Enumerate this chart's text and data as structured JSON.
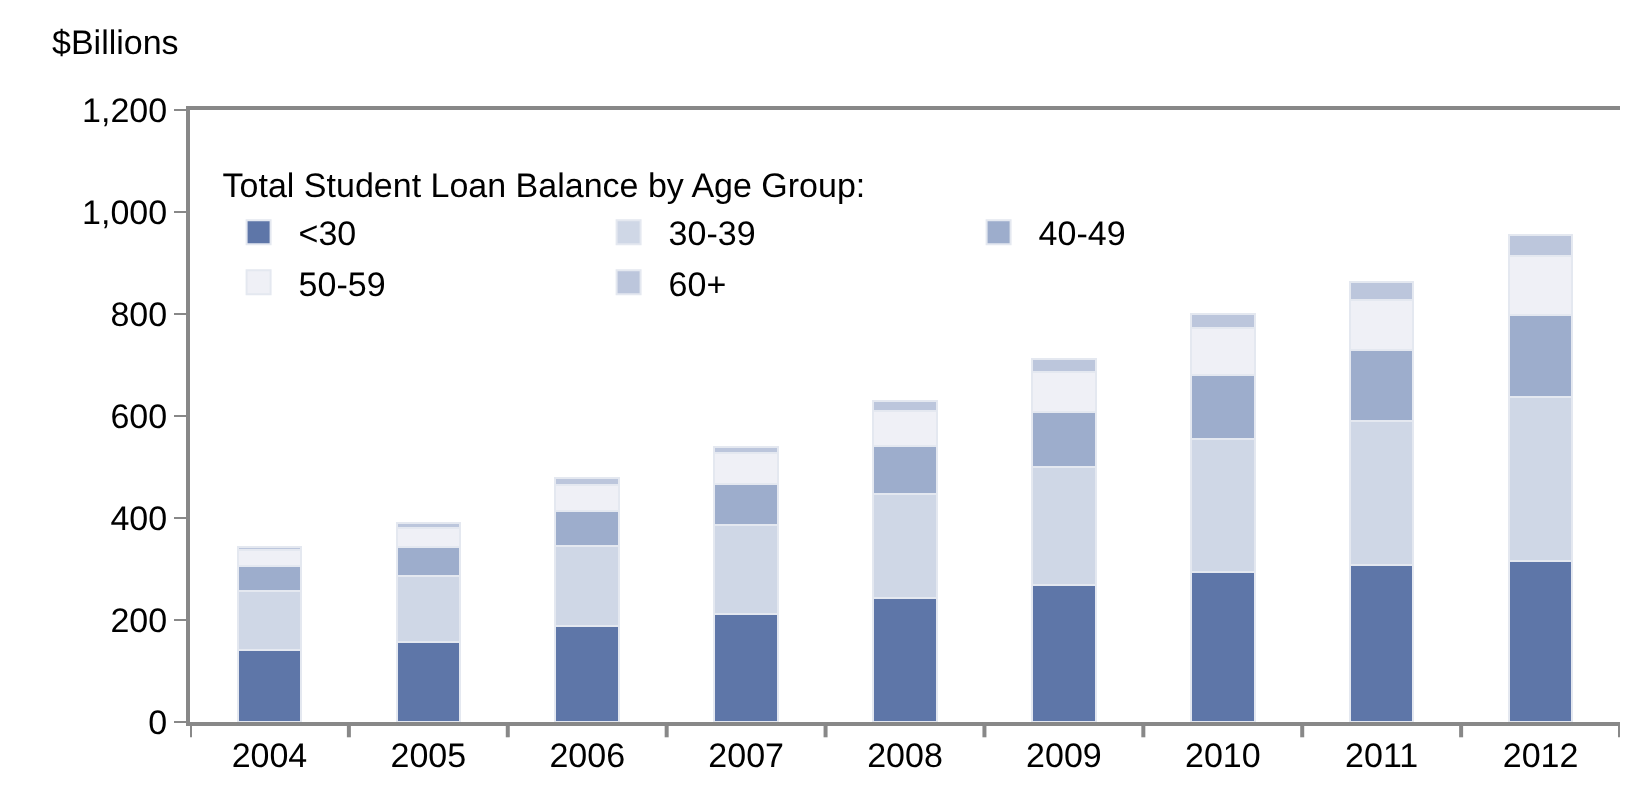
{
  "chart_data": {
    "type": "bar",
    "stacked": true,
    "ylabel": "$Billions",
    "legend_title": "Total Student Loan Balance by Age Group:",
    "legend": "top left",
    "categories": [
      "2004",
      "2005",
      "2006",
      "2007",
      "2008",
      "2009",
      "2010",
      "2011",
      "2012"
    ],
    "ylim": [
      0,
      1200
    ],
    "yticks": [
      0,
      200,
      400,
      600,
      800,
      {
        "value": 1000,
        "label": "1,000"
      },
      {
        "value": 1200,
        "label": "1,200"
      }
    ],
    "series": [
      {
        "name": "<30",
        "color": "#5e76a8",
        "values": [
          141,
          157,
          189,
          212,
          243,
          268,
          295,
          307,
          315
        ]
      },
      {
        "name": "30-39",
        "color": "#cfd7e6",
        "values": [
          115,
          130,
          157,
          174,
          205,
          232,
          259,
          283,
          322
        ]
      },
      {
        "name": "40-49",
        "color": "#9dadcc",
        "values": [
          50,
          56,
          68,
          81,
          93,
          107,
          126,
          140,
          162
        ]
      },
      {
        "name": "50-59",
        "color": "#eff0f6",
        "values": [
          31,
          38,
          51,
          60,
          69,
          80,
          92,
          97,
          114
        ]
      },
      {
        "name": "60+",
        "color": "#bcc6dc",
        "values": [
          6,
          9,
          13,
          13,
          19,
          24,
          28,
          35,
          42
        ]
      }
    ]
  }
}
